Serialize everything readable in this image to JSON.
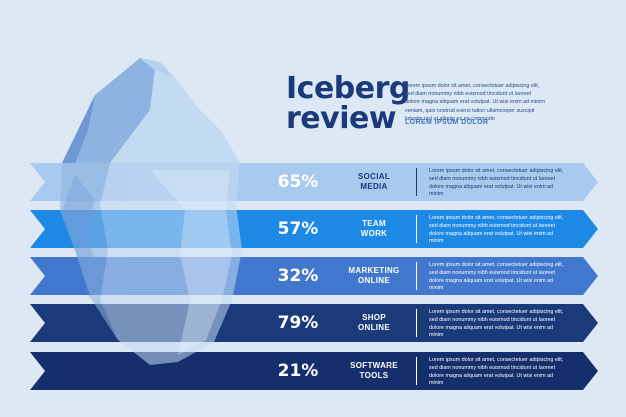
{
  "title": {
    "line1": "Iceberg",
    "line2": "review"
  },
  "intro": "Lorem ipsum dolor sit amet, consectetuer adipiscing elit, sed diam nonummy nibh euismod tincidunt ut laoreet dolore magna aliquam erat volutpat. Ut wisi enim ad minim veniam, quis nostrud exerci tation ullamcorper suscipit lobortis nisl ut aliquip ex ea commodo",
  "subtitle": "LOREM IPSUM DOLOR",
  "colors": {
    "background": "#dce8f4",
    "band_1": "#a8caee",
    "band_2": "#1e88e5",
    "band_3": "#4177cc",
    "band_4": "#1a3a7a",
    "band_5": "#142f6b",
    "iceberg_light": "#c2daf2",
    "iceberg_mid": "#8fb3e0",
    "iceberg_dark": "#6e97d4"
  },
  "rows": [
    {
      "percent": "65%",
      "label_1": "SOCIAL",
      "label_2": "MEDIA",
      "text": "Lorem ipsum dolor sit amet, consectetuer adipiscing elit, sed diam nonummy nibh euismod tincidunt ut laoreet dolore magna aliquam erat volutpat. Ut wisi enim ad minim"
    },
    {
      "percent": "57%",
      "label_1": "TEAM",
      "label_2": "WORK",
      "text": "Lorem ipsum dolor sit amet, consectetuer adipiscing elit, sed diam nonummy nibh euismod tincidunt ut laoreet dolore magna aliquam erat volutpat. Ut wisi enim ad minim"
    },
    {
      "percent": "32%",
      "label_1": "MARKETING",
      "label_2": "ONLINE",
      "text": "Lorem ipsum dolor sit amet, consectetuer adipiscing elit, sed diam nonummy nibh euismod tincidunt ut laoreet dolore magna aliquam erat volutpat. Ut wisi enim ad minim"
    },
    {
      "percent": "79%",
      "label_1": "SHOP",
      "label_2": "ONLINE",
      "text": "Lorem ipsum dolor sit amet, consectetuer adipiscing elit, sed diam nonummy nibh euismod tincidunt ut laoreet dolore magna aliquam erat volutpat. Ut wisi enim ad minim"
    },
    {
      "percent": "21%",
      "label_1": "SOFTWARE",
      "label_2": "TOOLS",
      "text": "Lorem ipsum dolor sit amet, consectetuer adipiscing elit, sed diam nonummy nibh euismod tincidunt ut laoreet dolore magna aliquam erat volutpat. Ut wisi enim ad minim"
    }
  ]
}
